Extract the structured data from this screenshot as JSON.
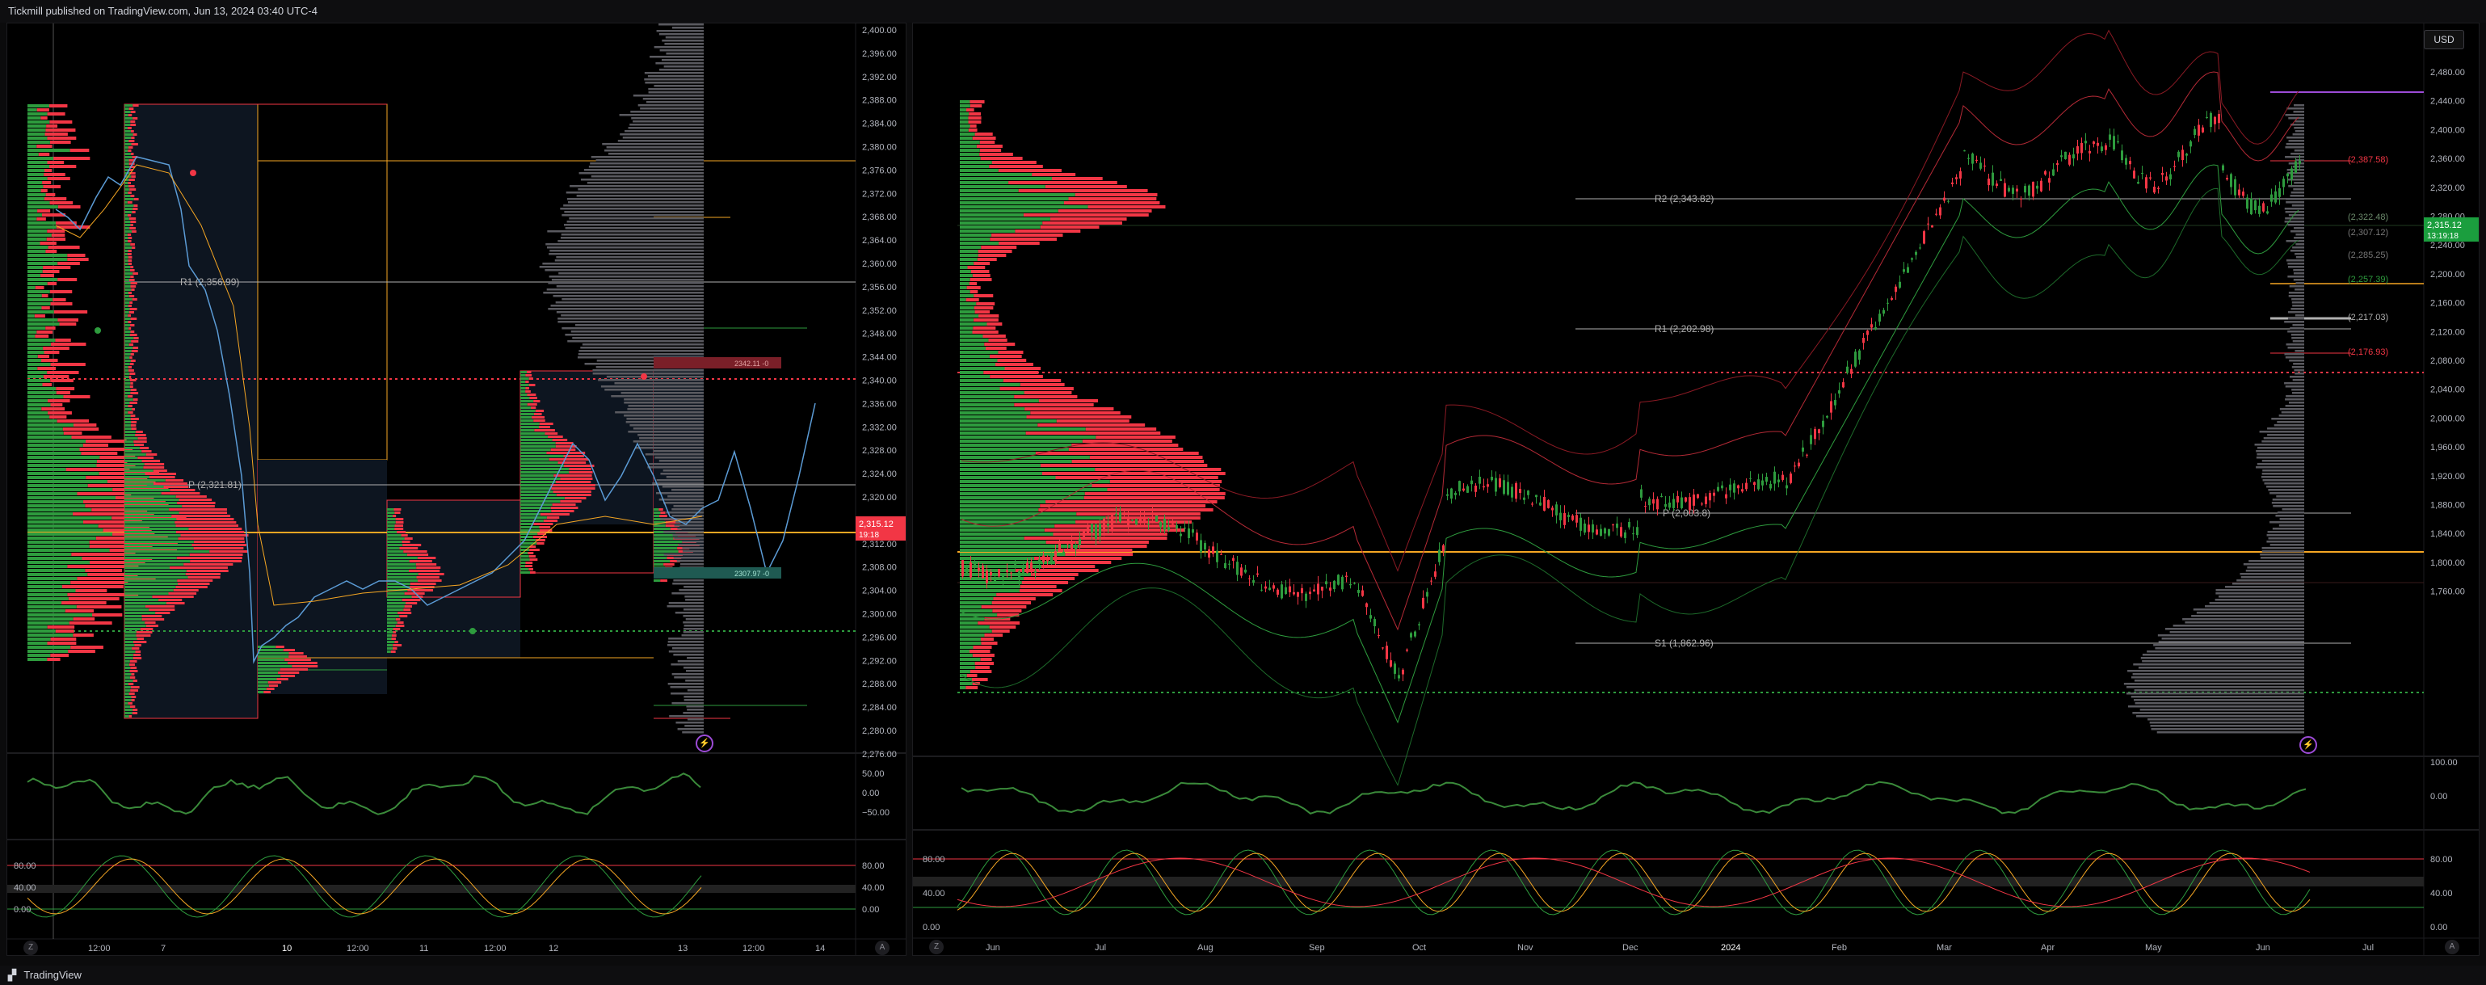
{
  "header": {
    "publish_text": "Tickmill published on TradingView.com, Jun 13, 2024 03:40 UTC-4"
  },
  "footer": {
    "brand": "TradingView"
  },
  "colors": {
    "up": "#2e9c3e",
    "down": "#f23645",
    "orange": "#f5a623",
    "blue": "#5b9bd5",
    "pivot_line": "#b0b0b0",
    "price_label_bg": "#f23645",
    "price_label_right_bg": "#1b9e3e"
  },
  "left_chart": {
    "price_axis": [
      "2,400.00",
      "2,396.00",
      "2,392.00",
      "2,388.00",
      "2,384.00",
      "2,380.00",
      "2,376.00",
      "2,372.00",
      "2,368.00",
      "2,364.00",
      "2,360.00",
      "2,356.00",
      "2,352.00",
      "2,348.00",
      "2,344.00",
      "2,340.00",
      "2,336.00",
      "2,332.00",
      "2,328.00",
      "2,324.00",
      "2,320.00",
      "2,316.00",
      "2,312.00",
      "2,308.00",
      "2,304.00",
      "2,300.00",
      "2,296.00",
      "2,292.00",
      "2,288.00",
      "2,284.00",
      "2,280.00",
      "2,276.00"
    ],
    "time_axis": [
      "12:00",
      "7",
      "10",
      "12:00",
      "11",
      "12:00",
      "12",
      "13",
      "12:00",
      "14"
    ],
    "pivot_labels": {
      "r1": "R1 (2,356.99)",
      "p": "P (2,321.81)"
    },
    "price_label": {
      "price": "2,315.12",
      "countdown": "19:18"
    },
    "box_label_red": "2342.11 -0",
    "box_label_green": "2307.97 -0",
    "osc1_axis": [
      "50.00",
      "0.00",
      "−50.00"
    ],
    "osc2_axis": [
      "80.00",
      "40.00",
      "0.00"
    ]
  },
  "right_chart": {
    "currency_button": "USD",
    "price_axis": [
      "2,480.00",
      "2,440.00",
      "2,400.00",
      "2,360.00",
      "2,320.00",
      "2,280.00",
      "2,240.00",
      "2,200.00",
      "2,160.00",
      "2,120.00",
      "2,080.00",
      "2,040.00",
      "2,000.00",
      "1,960.00",
      "1,920.00",
      "1,880.00",
      "1,840.00",
      "1,800.00",
      "1,760.00"
    ],
    "time_axis": [
      "Jun",
      "Jul",
      "Aug",
      "Sep",
      "Oct",
      "Nov",
      "Dec",
      "2024",
      "Feb",
      "Mar",
      "Apr",
      "May",
      "Jun",
      "Jul"
    ],
    "pivot_labels": {
      "r2": "R2 (2,343.82)",
      "r1": "R1 (2,202.98)",
      "p": "P (2,003.8)",
      "s1": "S1 (1,862.96)"
    },
    "level_labels": [
      "(2,387.58)",
      "(2,322.48)",
      "(2,307.12)",
      "(2,285.25)",
      "(2,257.39)",
      "(2,217.03)",
      "(2,176.93)"
    ],
    "price_label": {
      "price": "2,315.12",
      "countdown": "13:19:18"
    },
    "osc1_axis": [
      "100.00",
      "0.00"
    ],
    "osc2_axis": [
      "80.00",
      "40.00",
      "0.00"
    ]
  }
}
